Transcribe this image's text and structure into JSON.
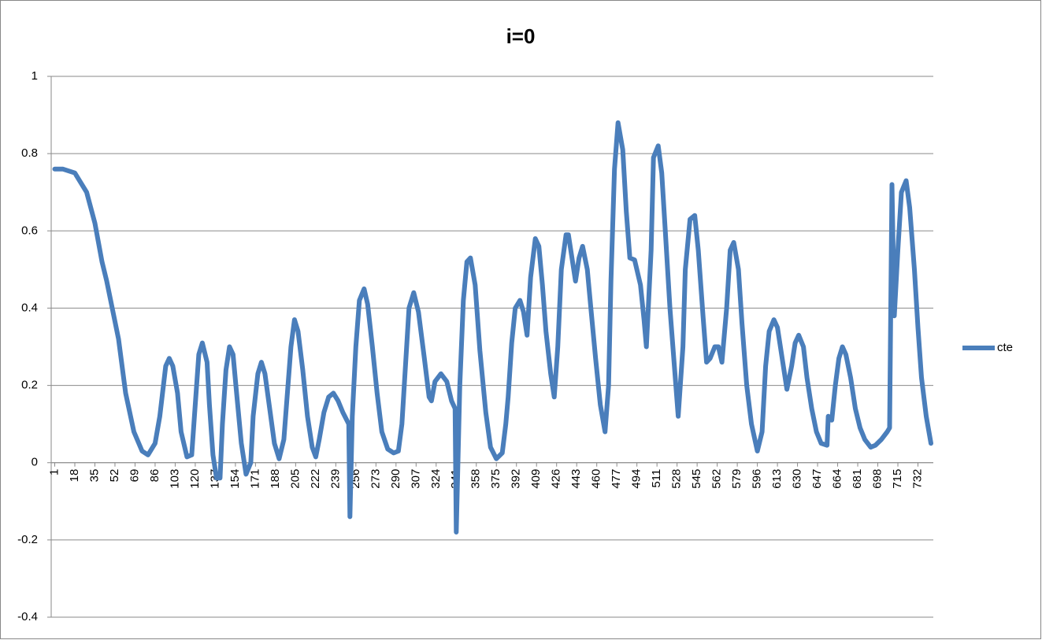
{
  "chart_data": {
    "type": "line",
    "title": "i=0",
    "x": [
      1,
      8,
      18,
      28,
      35,
      41,
      45,
      55,
      61,
      68,
      75,
      80,
      86,
      90,
      95,
      98,
      101,
      105,
      108,
      113,
      117,
      120,
      123,
      126,
      130,
      132,
      135,
      138,
      141,
      143,
      146,
      149,
      152,
      155,
      159,
      163,
      167,
      169,
      173,
      176,
      179,
      183,
      187,
      191,
      195,
      198,
      201,
      204,
      207,
      211,
      215,
      219,
      222,
      225,
      229,
      233,
      237,
      241,
      245,
      250,
      251,
      253,
      256,
      259,
      263,
      266,
      270,
      274,
      278,
      283,
      288,
      292,
      295,
      298,
      301,
      305,
      309,
      314,
      318,
      320,
      323,
      328,
      333,
      337,
      340,
      341,
      344,
      347,
      350,
      353,
      357,
      361,
      366,
      370,
      375,
      380,
      383,
      385,
      388,
      391,
      395,
      398,
      401,
      404,
      408,
      411,
      414,
      417,
      421,
      424,
      427,
      430,
      434,
      436,
      439,
      442,
      445,
      448,
      452,
      455,
      459,
      463,
      467,
      470,
      472,
      475,
      478,
      482,
      485,
      488,
      492,
      497,
      500,
      502,
      506,
      508,
      512,
      515,
      518,
      522,
      526,
      529,
      533,
      535,
      539,
      543,
      546,
      550,
      553,
      556,
      560,
      563,
      566,
      570,
      573,
      576,
      580,
      583,
      587,
      591,
      596,
      600,
      603,
      606,
      610,
      613,
      617,
      621,
      625,
      628,
      631,
      635,
      638,
      642,
      646,
      650,
      655,
      656,
      659,
      662,
      665,
      668,
      671,
      675,
      679,
      683,
      687,
      692,
      696,
      701,
      706,
      708,
      710,
      712,
      715,
      718,
      722,
      725,
      729,
      732,
      735,
      739,
      743
    ],
    "series": [
      {
        "name": "cte",
        "color": "#4a7ebb",
        "values": [
          0.76,
          0.76,
          0.75,
          0.7,
          0.62,
          0.52,
          0.47,
          0.32,
          0.18,
          0.08,
          0.03,
          0.02,
          0.05,
          0.12,
          0.25,
          0.27,
          0.25,
          0.18,
          0.08,
          0.015,
          0.02,
          0.15,
          0.28,
          0.31,
          0.26,
          0.15,
          0.02,
          -0.04,
          -0.04,
          0.1,
          0.24,
          0.3,
          0.28,
          0.18,
          0.05,
          -0.03,
          0.0,
          0.12,
          0.23,
          0.26,
          0.23,
          0.14,
          0.05,
          0.01,
          0.06,
          0.18,
          0.3,
          0.37,
          0.34,
          0.24,
          0.12,
          0.04,
          0.015,
          0.06,
          0.13,
          0.17,
          0.18,
          0.16,
          0.13,
          0.1,
          -0.14,
          0.12,
          0.3,
          0.42,
          0.45,
          0.41,
          0.3,
          0.18,
          0.08,
          0.035,
          0.025,
          0.03,
          0.1,
          0.25,
          0.4,
          0.44,
          0.39,
          0.27,
          0.17,
          0.16,
          0.21,
          0.23,
          0.21,
          0.16,
          0.14,
          -0.18,
          0.2,
          0.42,
          0.52,
          0.53,
          0.46,
          0.29,
          0.13,
          0.04,
          0.01,
          0.025,
          0.1,
          0.17,
          0.31,
          0.4,
          0.42,
          0.39,
          0.33,
          0.48,
          0.58,
          0.56,
          0.46,
          0.34,
          0.23,
          0.17,
          0.3,
          0.5,
          0.59,
          0.59,
          0.53,
          0.47,
          0.53,
          0.56,
          0.5,
          0.4,
          0.27,
          0.15,
          0.08,
          0.2,
          0.47,
          0.76,
          0.88,
          0.81,
          0.65,
          0.53,
          0.525,
          0.46,
          0.37,
          0.3,
          0.55,
          0.79,
          0.82,
          0.75,
          0.6,
          0.4,
          0.24,
          0.12,
          0.3,
          0.5,
          0.63,
          0.64,
          0.55,
          0.38,
          0.26,
          0.27,
          0.3,
          0.3,
          0.26,
          0.4,
          0.55,
          0.57,
          0.5,
          0.36,
          0.2,
          0.1,
          0.03,
          0.08,
          0.25,
          0.34,
          0.37,
          0.35,
          0.27,
          0.19,
          0.25,
          0.31,
          0.33,
          0.3,
          0.22,
          0.14,
          0.08,
          0.05,
          0.045,
          0.12,
          0.11,
          0.2,
          0.27,
          0.3,
          0.28,
          0.22,
          0.14,
          0.09,
          0.06,
          0.04,
          0.045,
          0.06,
          0.08,
          0.09,
          0.72,
          0.38,
          0.55,
          0.7,
          0.73,
          0.66,
          0.5,
          0.35,
          0.22,
          0.12,
          0.05
        ]
      }
    ],
    "xlim": [
      -2,
      745
    ],
    "xticks": [
      1,
      18,
      35,
      52,
      69,
      86,
      103,
      120,
      137,
      154,
      171,
      188,
      205,
      222,
      239,
      256,
      273,
      290,
      307,
      324,
      341,
      358,
      375,
      392,
      409,
      426,
      443,
      460,
      477,
      494,
      511,
      528,
      545,
      562,
      579,
      596,
      613,
      630,
      647,
      664,
      681,
      698,
      715,
      732
    ],
    "ylim": [
      -0.4,
      1
    ],
    "yticks": [
      -0.4,
      -0.2,
      0,
      0.2,
      0.4,
      0.6,
      0.8,
      1
    ],
    "grid": true
  }
}
